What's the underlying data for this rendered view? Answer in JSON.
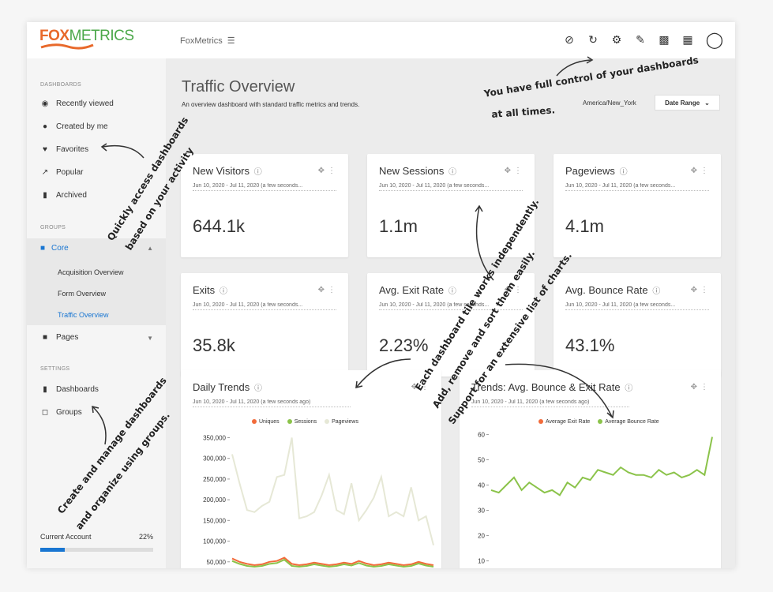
{
  "topbar": {
    "logo_fox": "FOX",
    "logo_metrics": "METRICS",
    "account": "FoxMetrics",
    "icons": [
      "sync-off-icon",
      "refresh-icon",
      "gear-icon",
      "pencil-icon",
      "comment-icon",
      "apps-grid-icon",
      "user-icon"
    ]
  },
  "sidebar": {
    "dashboards_heading": "DASHBOARDS",
    "items": [
      {
        "label": "Recently viewed",
        "icon": "eye-icon"
      },
      {
        "label": "Created by me",
        "icon": "person-icon"
      },
      {
        "label": "Favorites",
        "icon": "heart-icon"
      },
      {
        "label": "Popular",
        "icon": "trending-icon"
      },
      {
        "label": "Archived",
        "icon": "trash-icon"
      }
    ],
    "groups_heading": "GROUPS",
    "core_label": "Core",
    "core_subitems": [
      "Acquisition Overview",
      "Form Overview",
      "Traffic Overview"
    ],
    "pages_label": "Pages",
    "settings_heading": "SETTINGS",
    "settings_items": [
      "Dashboards",
      "Groups"
    ],
    "current_account_label": "Current Account",
    "current_account_pct": "22%",
    "current_account_fraction": 0.22
  },
  "main": {
    "title": "Traffic Overview",
    "subtitle": "An overview dashboard with standard traffic metrics and trends.",
    "timezone": "America/New_York",
    "date_range_label": "Date Range"
  },
  "tiles": [
    {
      "title": "New Visitors",
      "date": "Jun 10, 2020 - Jul 11, 2020 (a few seconds...",
      "value": "644.1k"
    },
    {
      "title": "New Sessions",
      "date": "Jun 10, 2020 - Jul 11, 2020 (a few seconds...",
      "value": "1.1m"
    },
    {
      "title": "Pageviews",
      "date": "Jun 10, 2020 - Jul 11, 2020 (a few seconds...",
      "value": "4.1m"
    },
    {
      "title": "Exits",
      "date": "Jun 10, 2020 - Jul 11, 2020 (a few seconds...",
      "value": "35.8k"
    },
    {
      "title": "Avg. Exit Rate",
      "date": "Jun 10, 2020 - Jul 11, 2020 (a few seconds...",
      "value": "2.23%"
    },
    {
      "title": "Avg. Bounce Rate",
      "date": "Jun 10, 2020 - Jul 11, 2020 (a few seconds...",
      "value": "43.1%"
    }
  ],
  "charts_meta": [
    {
      "title": "Daily Trends",
      "date": "Jun 10, 2020 - Jul 11, 2020 (a few seconds ago)"
    },
    {
      "title": "Trends: Avg. Bounce & Exit Rate",
      "date": "Jun 10, 2020 - Jul 11, 2020 (a few seconds ago)"
    }
  ],
  "chart_data": [
    {
      "type": "line",
      "title": "Daily Trends",
      "yticks": [
        "350,000",
        "300,000",
        "250,000",
        "200,000",
        "150,000",
        "100,000",
        "50,000"
      ],
      "ylim": [
        40000,
        370000
      ],
      "series": [
        {
          "name": "Uniques",
          "color": "#f26b3a",
          "values": [
            58000,
            50000,
            45000,
            42000,
            44000,
            50000,
            52000,
            60000,
            45000,
            42000,
            44000,
            48000,
            45000,
            42000,
            44000,
            48000,
            45000,
            52000,
            46000,
            42000,
            44000,
            48000,
            45000,
            42000,
            44000,
            50000,
            45000,
            42000
          ]
        },
        {
          "name": "Sessions",
          "color": "#8bc34a",
          "values": [
            52000,
            45000,
            40000,
            38000,
            40000,
            45000,
            47000,
            55000,
            40000,
            38000,
            40000,
            44000,
            41000,
            38000,
            40000,
            44000,
            41000,
            47000,
            41000,
            38000,
            40000,
            44000,
            41000,
            38000,
            40000,
            46000,
            41000,
            38000
          ]
        },
        {
          "name": "Pageviews",
          "color": "#e6e8d6",
          "values": [
            310000,
            240000,
            175000,
            170000,
            185000,
            195000,
            255000,
            260000,
            350000,
            155000,
            160000,
            170000,
            210000,
            260000,
            175000,
            165000,
            240000,
            150000,
            175000,
            205000,
            255000,
            160000,
            170000,
            160000,
            230000,
            150000,
            160000,
            90000
          ]
        }
      ]
    },
    {
      "type": "line",
      "title": "Trends: Avg. Bounce & Exit Rate",
      "yticks": [
        "60",
        "50",
        "40",
        "30",
        "20",
        "10"
      ],
      "ylim": [
        8,
        62
      ],
      "series": [
        {
          "name": "Average Exit Rate",
          "color": "#f26b3a",
          "values": []
        },
        {
          "name": "Average Bounce Rate",
          "color": "#8bc34a",
          "values": [
            38,
            37,
            40,
            43,
            38,
            41,
            39,
            37,
            38,
            36,
            41,
            39,
            43,
            42,
            46,
            45,
            44,
            47,
            45,
            44,
            44,
            43,
            46,
            44,
            45,
            43,
            44,
            46,
            44,
            59
          ]
        }
      ]
    }
  ],
  "annotations": [
    "You have full control of your dashboards",
    "at all times.",
    "Quickly access dashboards",
    "based on your activity",
    "Each dashboard tile works independently.",
    "Add, remove and sort them easily.",
    "Support for an extensive list of charts.",
    "Create and manage dashboards",
    "and organize using groups."
  ]
}
